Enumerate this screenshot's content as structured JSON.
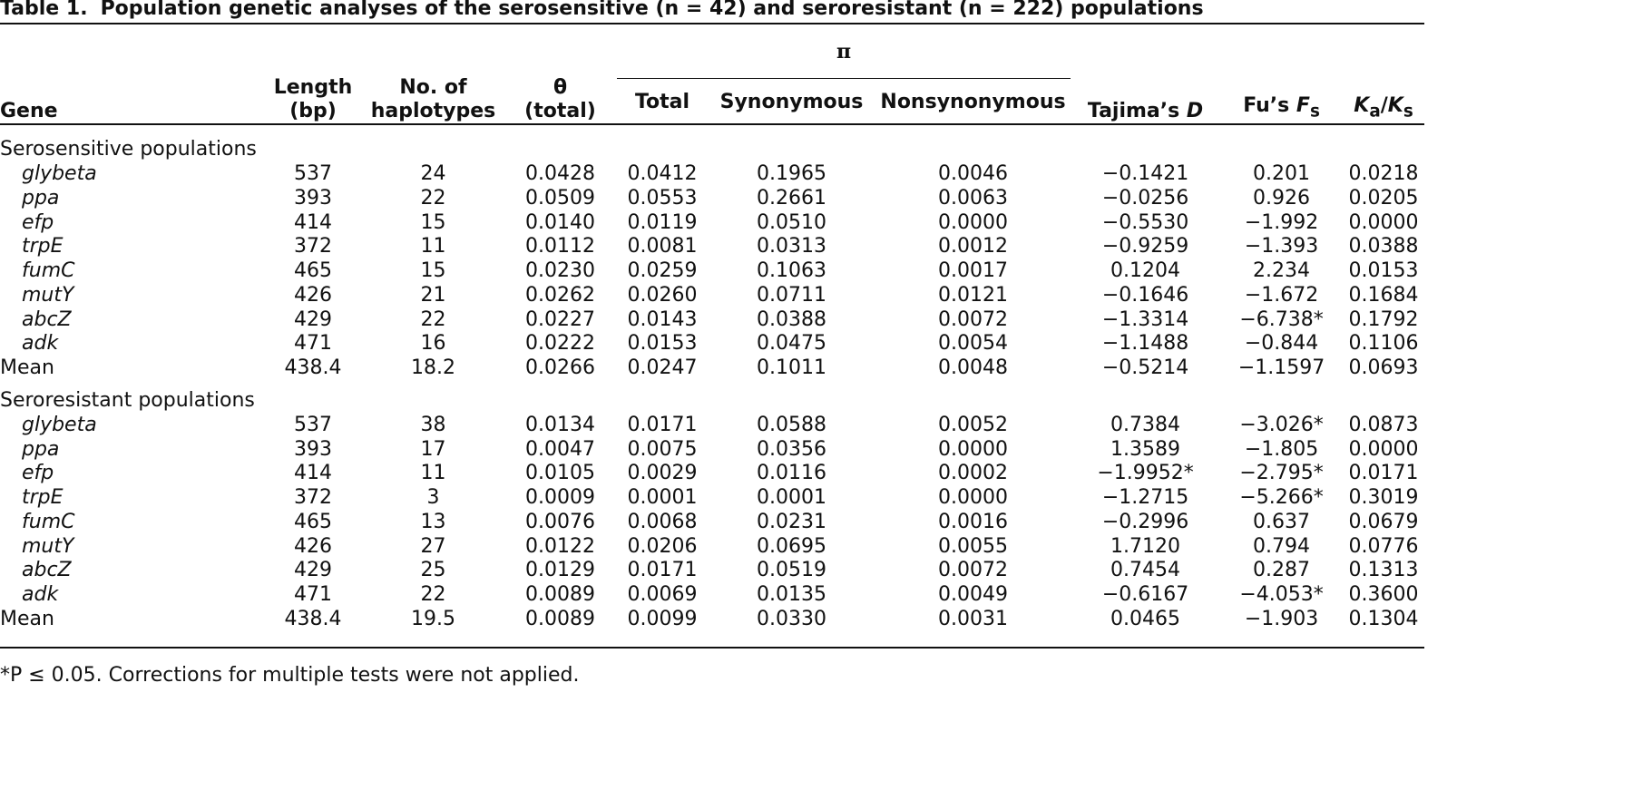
{
  "title": {
    "label": "Table 1.",
    "text": "Population genetic analyses of the serosensitive (n = 42) and seroresistant (n = 222) populations"
  },
  "header": {
    "group": "π",
    "columns": [
      [
        "Gene"
      ],
      [
        "Length",
        "(bp)"
      ],
      [
        "No. of",
        "haplotypes"
      ],
      [
        "θ",
        "(total)"
      ],
      [
        "Total"
      ],
      [
        "Synonymous"
      ],
      [
        "Nonsynonymous"
      ],
      [
        "Tajima’s ",
        "D"
      ],
      [
        "Fu’s ",
        "F",
        "s"
      ],
      [
        "K",
        "a",
        "/",
        "K",
        "s"
      ]
    ]
  },
  "sections": [
    {
      "title": "Serosensitive populations",
      "rows": [
        [
          "glybeta",
          "537",
          "24",
          "0.0428",
          "0.0412",
          "0.1965",
          "0.0046",
          "−0.1421",
          "0.201",
          "0.0218"
        ],
        [
          "ppa",
          "393",
          "22",
          "0.0509",
          "0.0553",
          "0.2661",
          "0.0063",
          "−0.0256",
          "0.926",
          "0.0205"
        ],
        [
          "efp",
          "414",
          "15",
          "0.0140",
          "0.0119",
          "0.0510",
          "0.0000",
          "−0.5530",
          "−1.992",
          "0.0000"
        ],
        [
          "trpE",
          "372",
          "11",
          "0.0112",
          "0.0081",
          "0.0313",
          "0.0012",
          "−0.9259",
          "−1.393",
          "0.0388"
        ],
        [
          "fumC",
          "465",
          "15",
          "0.0230",
          "0.0259",
          "0.1063",
          "0.0017",
          "0.1204",
          "2.234",
          "0.0153"
        ],
        [
          "mutY",
          "426",
          "21",
          "0.0262",
          "0.0260",
          "0.0711",
          "0.0121",
          "−0.1646",
          "−1.672",
          "0.1684"
        ],
        [
          "abcZ",
          "429",
          "22",
          "0.0227",
          "0.0143",
          "0.0388",
          "0.0072",
          "−1.3314",
          "−6.738*",
          "0.1792"
        ],
        [
          "adk",
          "471",
          "16",
          "0.0222",
          "0.0153",
          "0.0475",
          "0.0054",
          "−1.1488",
          "−0.844",
          "0.1106"
        ]
      ],
      "mean": [
        "Mean",
        "438.4",
        "18.2",
        "0.0266",
        "0.0247",
        "0.1011",
        "0.0048",
        "−0.5214",
        "−1.1597",
        "0.0693"
      ]
    },
    {
      "title": "Seroresistant populations",
      "rows": [
        [
          "glybeta",
          "537",
          "38",
          "0.0134",
          "0.0171",
          "0.0588",
          "0.0052",
          "0.7384",
          "−3.026*",
          "0.0873"
        ],
        [
          "ppa",
          "393",
          "17",
          "0.0047",
          "0.0075",
          "0.0356",
          "0.0000",
          "1.3589",
          "−1.805",
          "0.0000"
        ],
        [
          "efp",
          "414",
          "11",
          "0.0105",
          "0.0029",
          "0.0116",
          "0.0002",
          "−1.9952*",
          "−2.795*",
          "0.0171"
        ],
        [
          "trpE",
          "372",
          "3",
          "0.0009",
          "0.0001",
          "0.0001",
          "0.0000",
          "−1.2715",
          "−5.266*",
          "0.3019"
        ],
        [
          "fumC",
          "465",
          "13",
          "0.0076",
          "0.0068",
          "0.0231",
          "0.0016",
          "−0.2996",
          "0.637",
          "0.0679"
        ],
        [
          "mutY",
          "426",
          "27",
          "0.0122",
          "0.0206",
          "0.0695",
          "0.0055",
          "1.7120",
          "0.794",
          "0.0776"
        ],
        [
          "abcZ",
          "429",
          "25",
          "0.0129",
          "0.0171",
          "0.0519",
          "0.0072",
          "0.7454",
          "0.287",
          "0.1313"
        ],
        [
          "adk",
          "471",
          "22",
          "0.0089",
          "0.0069",
          "0.0135",
          "0.0049",
          "−0.6167",
          "−4.053*",
          "0.3600"
        ]
      ],
      "mean": [
        "Mean",
        "438.4",
        "19.5",
        "0.0089",
        "0.0099",
        "0.0330",
        "0.0031",
        "0.0465",
        "−1.903",
        "0.1304"
      ]
    }
  ],
  "footnote": "*P ≤ 0.05. Corrections for multiple tests were not applied."
}
